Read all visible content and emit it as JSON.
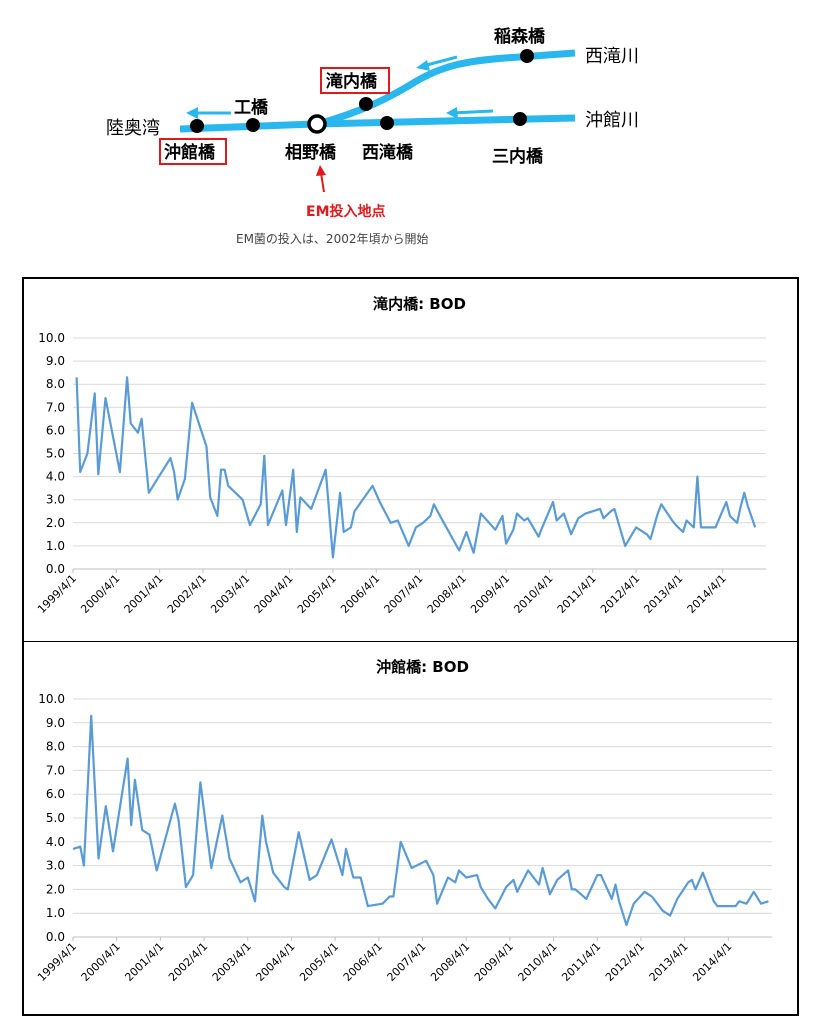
{
  "map": {
    "rivers": {
      "nishitaki": "西滝川",
      "okidate": "沖館川",
      "bay": "陸奥湾"
    },
    "stations": {
      "inamori": "稲森橋",
      "takiuchi": "滝内橋",
      "kobashi": "工橋",
      "aino": "相野橋",
      "nishitaki": "西滝橋",
      "okidate": "沖館橋",
      "sannai": "三内橋"
    },
    "em_point_label": "EM投入地点",
    "caption": "EM菌の投入は、2002年頃から開始",
    "colors": {
      "river": "#2ab7ee",
      "highlight": "#e0191c"
    }
  },
  "chart_data": [
    {
      "type": "line",
      "title": "滝内橋: BOD",
      "ylim": [
        0,
        10
      ],
      "yticks": [
        "10.0",
        "9.0",
        "8.0",
        "7.0",
        "6.0",
        "5.0",
        "4.0",
        "3.0",
        "2.0",
        "1.0",
        "0.0"
      ],
      "xlim": [
        "1999-04-01",
        "2015-04-01"
      ],
      "xticks": [
        "1999/4/1",
        "2000/4/1",
        "2001/4/1",
        "2002/4/1",
        "2003/4/1",
        "2004/4/1",
        "2005/4/1",
        "2006/4/1",
        "2007/4/1",
        "2008/4/1",
        "2009/4/1",
        "2010/4/1",
        "2011/4/1",
        "2012/4/1",
        "2013/4/1",
        "2014/4/1"
      ],
      "grid": true,
      "color": "#5b9bd5",
      "series": [
        {
          "x": [
            "1999-05",
            "1999-06",
            "1999-08",
            "1999-10",
            "1999-11",
            "2000-01",
            "2000-05",
            "2000-07",
            "2000-08",
            "2000-10",
            "2000-11",
            "2001-01",
            "2001-03",
            "2001-07",
            "2001-08",
            "2001-09",
            "2001-11",
            "2002-01",
            "2002-05",
            "2002-06",
            "2002-08",
            "2002-09",
            "2002-10",
            "2002-11",
            "2003-03",
            "2003-05",
            "2003-08",
            "2003-09",
            "2003-10",
            "2004-02",
            "2004-03",
            "2004-05",
            "2004-06",
            "2004-07",
            "2004-10",
            "2005-02",
            "2005-03",
            "2005-04",
            "2005-06",
            "2005-07",
            "2005-09",
            "2005-10",
            "2006-03",
            "2006-05",
            "2006-08",
            "2006-10",
            "2007-01",
            "2007-03",
            "2007-05",
            "2007-07",
            "2007-08",
            "2007-09",
            "2008-03",
            "2008-05",
            "2008-07",
            "2008-09",
            "2009-01",
            "2009-03",
            "2009-04",
            "2009-06",
            "2009-07",
            "2009-09",
            "2009-10",
            "2010-01",
            "2010-02",
            "2010-05",
            "2010-06",
            "2010-08",
            "2010-10",
            "2010-12",
            "2011-02",
            "2011-06",
            "2011-07",
            "2011-09",
            "2011-10",
            "2012-01",
            "2012-04",
            "2012-07",
            "2012-08",
            "2012-10",
            "2012-11",
            "2013-02",
            "2013-03",
            "2013-05",
            "2013-06",
            "2013-08",
            "2013-09",
            "2013-10",
            "2013-11",
            "2014-02",
            "2014-05",
            "2014-06",
            "2014-08",
            "2014-09",
            "2014-10",
            "2014-11",
            "2015-01"
          ],
          "values": [
            8.3,
            4.2,
            5.0,
            7.6,
            4.1,
            7.4,
            4.2,
            8.3,
            6.3,
            5.9,
            6.5,
            3.3,
            3.8,
            4.8,
            4.2,
            3.0,
            3.9,
            7.2,
            5.3,
            3.1,
            2.3,
            4.3,
            4.3,
            3.6,
            3.0,
            1.9,
            2.8,
            4.9,
            1.9,
            3.4,
            1.9,
            4.3,
            1.6,
            3.1,
            2.6,
            4.3,
            2.4,
            0.5,
            3.3,
            1.6,
            1.8,
            2.5,
            3.6,
            2.9,
            2.0,
            2.1,
            1.0,
            1.8,
            2.0,
            2.3,
            2.8,
            2.5,
            0.8,
            1.6,
            0.7,
            2.4,
            1.7,
            2.3,
            1.1,
            1.7,
            2.4,
            2.1,
            2.2,
            1.4,
            1.8,
            2.9,
            2.1,
            2.4,
            1.5,
            2.2,
            2.4,
            2.6,
            2.2,
            2.5,
            2.6,
            1.0,
            1.8,
            1.5,
            1.3,
            2.4,
            2.8,
            2.1,
            1.9,
            1.6,
            2.1,
            1.8,
            4.0,
            1.8,
            1.8,
            1.8,
            2.9,
            2.3,
            2.0,
            2.7,
            3.3,
            2.7,
            1.8
          ]
        }
      ]
    },
    {
      "type": "line",
      "title": "沖館橋: BOD",
      "ylim": [
        0,
        10
      ],
      "yticks": [
        "10.0",
        "9.0",
        "8.0",
        "7.0",
        "6.0",
        "5.0",
        "4.0",
        "3.0",
        "2.0",
        "1.0",
        "0.0"
      ],
      "xlim": [
        "1999-04-01",
        "2015-04-01"
      ],
      "xticks": [
        "1999/4/1",
        "2000/4/1",
        "2001/4/1",
        "2002/4/1",
        "2003/4/1",
        "2004/4/1",
        "2005/4/1",
        "2006/4/1",
        "2007/4/1",
        "2008/4/1",
        "2009/4/1",
        "2010/4/1",
        "2011/4/1",
        "2012/4/1",
        "2013/4/1",
        "2014/4/1"
      ],
      "grid": true,
      "color": "#5b9bd5",
      "series": [
        {
          "x": [
            "1999-04",
            "1999-06",
            "1999-07",
            "1999-09",
            "1999-11",
            "2000-01",
            "2000-03",
            "2000-07",
            "2000-08",
            "2000-09",
            "2000-11",
            "2001-01",
            "2001-03",
            "2001-08",
            "2001-09",
            "2001-11",
            "2002-01",
            "2002-03",
            "2002-06",
            "2002-09",
            "2002-11",
            "2003-02",
            "2003-04",
            "2003-06",
            "2003-08",
            "2003-09",
            "2003-11",
            "2004-02",
            "2004-03",
            "2004-06",
            "2004-09",
            "2004-11",
            "2005-03",
            "2005-06",
            "2005-07",
            "2005-09",
            "2005-11",
            "2006-01",
            "2006-05",
            "2006-07",
            "2006-08",
            "2006-10",
            "2007-01",
            "2007-05",
            "2007-07",
            "2007-08",
            "2007-11",
            "2008-01",
            "2008-02",
            "2008-04",
            "2008-07",
            "2008-08",
            "2008-10",
            "2008-12",
            "2009-03",
            "2009-05",
            "2009-06",
            "2009-09",
            "2009-12",
            "2010-01",
            "2010-03",
            "2010-05",
            "2010-08",
            "2010-09",
            "2010-10",
            "2011-01",
            "2011-04",
            "2011-05",
            "2011-08",
            "2011-09",
            "2011-10",
            "2011-12",
            "2012-02",
            "2012-05",
            "2012-06",
            "2012-07",
            "2012-10",
            "2012-12",
            "2013-02",
            "2013-05",
            "2013-06",
            "2013-07",
            "2013-09",
            "2013-12",
            "2014-01",
            "2014-03",
            "2014-06",
            "2014-07",
            "2014-09",
            "2014-11",
            "2015-01",
            "2015-03"
          ],
          "values": [
            3.7,
            3.8,
            3.0,
            9.3,
            3.3,
            5.5,
            3.6,
            7.5,
            4.7,
            6.6,
            4.5,
            4.3,
            2.8,
            5.6,
            4.9,
            2.1,
            2.6,
            6.5,
            2.9,
            5.1,
            3.3,
            2.3,
            2.5,
            1.5,
            5.1,
            4.0,
            2.7,
            2.1,
            2.0,
            4.4,
            2.4,
            2.6,
            4.1,
            2.6,
            3.7,
            2.5,
            2.5,
            1.3,
            1.4,
            1.7,
            1.7,
            4.0,
            2.9,
            3.2,
            2.6,
            1.4,
            2.5,
            2.3,
            2.8,
            2.5,
            2.6,
            2.1,
            1.6,
            1.2,
            2.1,
            2.4,
            1.9,
            2.8,
            2.2,
            2.9,
            1.8,
            2.4,
            2.8,
            2.0,
            2.0,
            1.6,
            2.6,
            2.6,
            1.6,
            2.2,
            1.5,
            0.5,
            1.4,
            1.9,
            1.8,
            1.7,
            1.1,
            0.9,
            1.6,
            2.3,
            2.4,
            2.0,
            2.7,
            1.5,
            1.3,
            1.3,
            1.3,
            1.5,
            1.4,
            1.9,
            1.4,
            1.5
          ]
        }
      ]
    }
  ]
}
